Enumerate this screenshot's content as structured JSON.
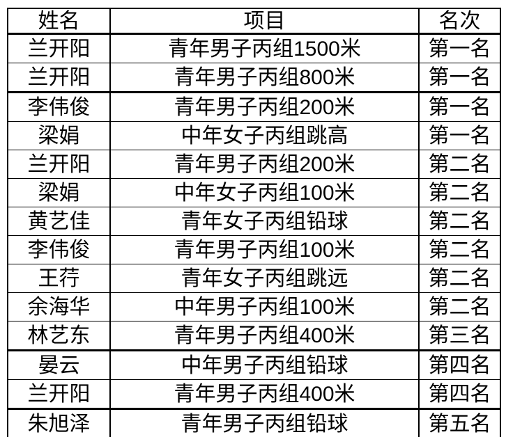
{
  "table": {
    "headers": [
      "姓名",
      "项目",
      "名次"
    ],
    "rows": [
      {
        "name": "兰开阳",
        "event": "青年男子丙组1500米",
        "rank": "第一名"
      },
      {
        "name": "兰开阳",
        "event": "青年男子丙组800米",
        "rank": "第一名"
      },
      {
        "name": "李伟俊",
        "event": "青年男子丙组200米",
        "rank": "第一名"
      },
      {
        "name": "梁娟",
        "event": "中年女子丙组跳高",
        "rank": "第一名"
      },
      {
        "name": "兰开阳",
        "event": "青年男子丙组200米",
        "rank": "第二名"
      },
      {
        "name": "梁娟",
        "event": "中年女子丙组100米",
        "rank": "第二名"
      },
      {
        "name": "黄艺佳",
        "event": "青年女子丙组铅球",
        "rank": "第二名"
      },
      {
        "name": "李伟俊",
        "event": "青年男子丙组100米",
        "rank": "第二名"
      },
      {
        "name": "王荇",
        "event": "青年女子丙组跳远",
        "rank": "第二名"
      },
      {
        "name": "余海华",
        "event": "中年男子丙组100米",
        "rank": "第二名"
      },
      {
        "name": "林艺东",
        "event": "青年男子丙组400米",
        "rank": "第三名"
      },
      {
        "name": "晏云",
        "event": "中年男子丙组铅球",
        "rank": "第四名"
      },
      {
        "name": "兰开阳",
        "event": "青年男子丙组400米",
        "rank": "第四名"
      },
      {
        "name": "朱旭泽",
        "event": "青年男子丙组铅球",
        "rank": "第五名"
      }
    ],
    "thick_border_after_rows": [
      2,
      11,
      13
    ],
    "colors": {
      "border": "#000000",
      "text": "#000000",
      "background": "#ffffff"
    }
  }
}
